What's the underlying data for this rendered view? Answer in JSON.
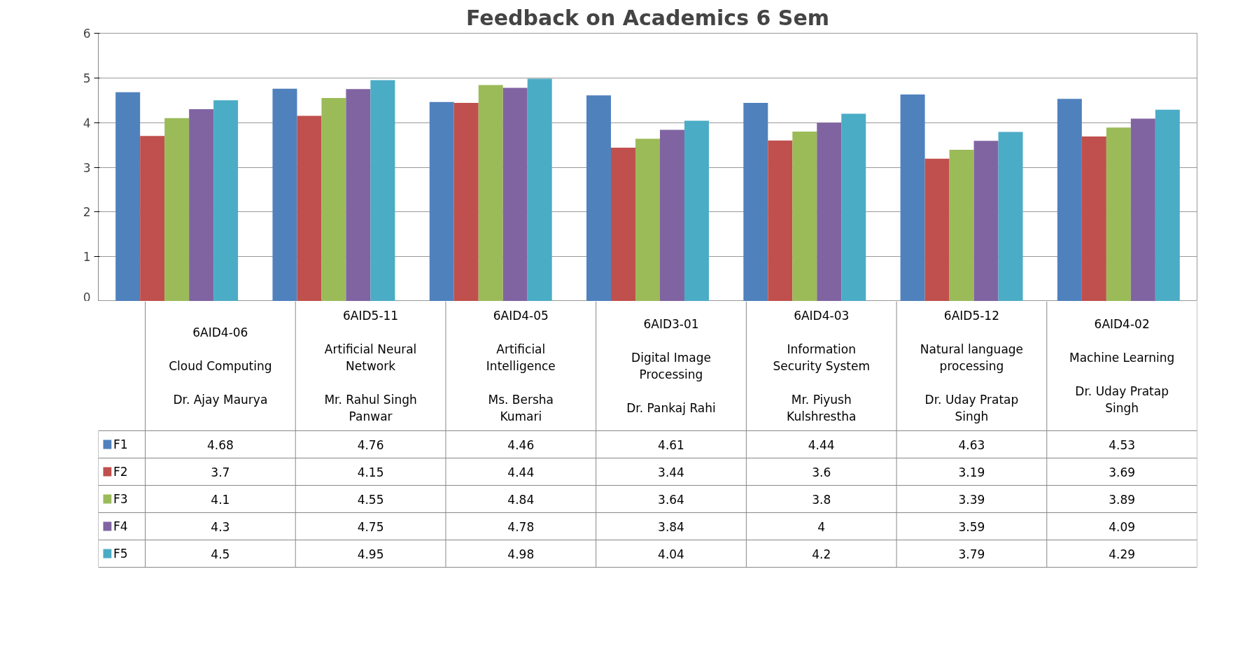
{
  "chart_data": {
    "type": "bar",
    "title": "Feedback on Academics 6 Sem",
    "categories": [
      "6AID4-06\n\nCloud Computing\n\nDr. Ajay Maurya",
      "6AID5-11\n\nArtificial Neural\nNetwork\n\nMr. Rahul Singh\nPanwar",
      "6AID4-05\n\nArtificial\nIntelligence\n\nMs. Bersha\nKumari",
      "6AID3-01\n\nDigital Image\nProcessing\n\nDr. Pankaj Rahi",
      "6AID4-03\n\nInformation\nSecurity System\n\nMr. Piyush\nKulshrestha",
      "6AID5-12\n\nNatural language\nprocessing\n\nDr. Uday Pratap\nSingh",
      "6AID4-02\n\nMachine Learning\n\nDr. Uday Pratap\nSingh"
    ],
    "series": [
      {
        "name": "F1",
        "color": "#4f81bd",
        "values": [
          4.68,
          4.76,
          4.46,
          4.61,
          4.44,
          4.63,
          4.53
        ]
      },
      {
        "name": "F2",
        "color": "#c0504d",
        "values": [
          3.7,
          4.15,
          4.44,
          3.44,
          3.6,
          3.19,
          3.69
        ]
      },
      {
        "name": "F3",
        "color": "#9bbb59",
        "values": [
          4.1,
          4.55,
          4.84,
          3.64,
          3.8,
          3.39,
          3.89
        ]
      },
      {
        "name": "F4",
        "color": "#8064a2",
        "values": [
          4.3,
          4.75,
          4.78,
          3.84,
          4,
          3.59,
          4.09
        ]
      },
      {
        "name": "F5",
        "color": "#4bacc6",
        "values": [
          4.5,
          4.95,
          4.98,
          4.04,
          4.2,
          3.79,
          4.29
        ]
      }
    ],
    "ylim": [
      0,
      6
    ],
    "yticks": [
      0,
      1,
      2,
      3,
      4,
      5,
      6
    ],
    "grid": "y",
    "legend": "bottom left",
    "data_labels": true
  }
}
